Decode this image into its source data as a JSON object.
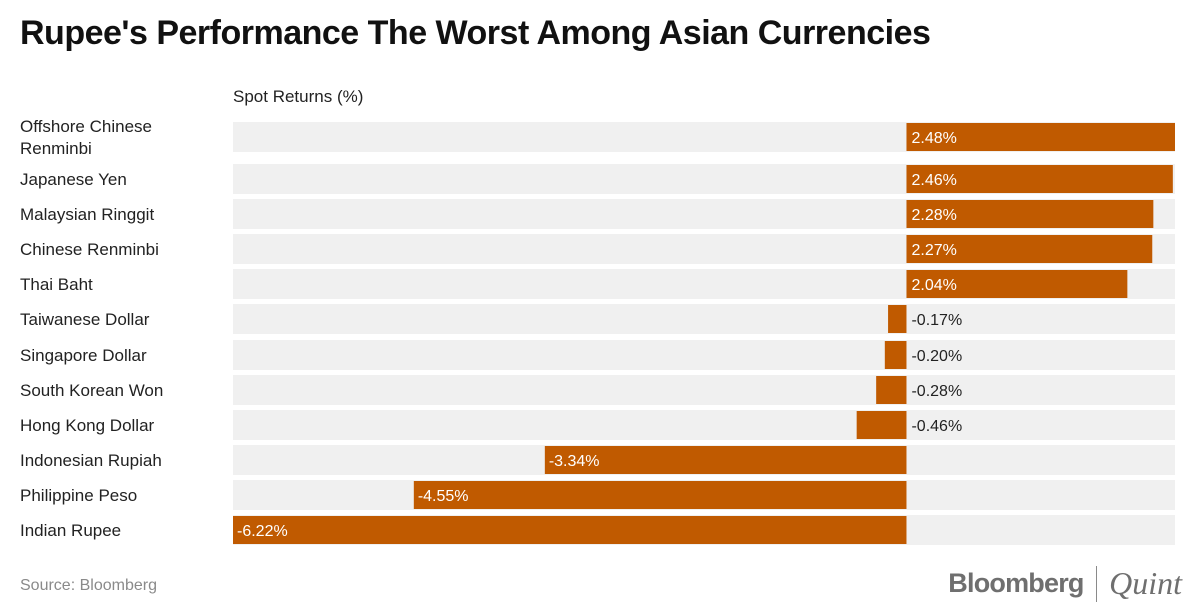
{
  "title": "Rupee's Performance The Worst Among Asian Currencies",
  "source": "Source: Bloomberg",
  "logo": {
    "left": "Bloomberg",
    "right": "Quint"
  },
  "colors": {
    "bar": "#c05a00",
    "row_background": "#f0f0f0"
  },
  "chart_data": {
    "type": "bar",
    "orientation": "horizontal",
    "title": "Rupee's Performance The Worst Among Asian Currencies",
    "xlabel": "Spot Returns (%)",
    "ylabel": "",
    "xlim": [
      -6.22,
      2.48
    ],
    "grid": false,
    "categories": [
      "Offshore Chinese Renminbi",
      "Japanese Yen",
      "Malaysian Ringgit",
      "Chinese Renminbi",
      "Thai Baht",
      "Taiwanese Dollar",
      "Singapore Dollar",
      "South Korean Won",
      "Hong Kong Dollar",
      "Indonesian Rupiah",
      "Philippine Peso",
      "Indian Rupee"
    ],
    "values": [
      2.48,
      2.46,
      2.28,
      2.27,
      2.04,
      -0.17,
      -0.2,
      -0.28,
      -0.46,
      -3.34,
      -4.55,
      -6.22
    ],
    "data_labels": [
      "2.48%",
      "2.46%",
      "2.28%",
      "2.27%",
      "2.04%",
      "-0.17%",
      "-0.20%",
      "-0.28%",
      "-0.46%",
      "-3.34%",
      "-4.55%",
      "-6.22%"
    ]
  }
}
